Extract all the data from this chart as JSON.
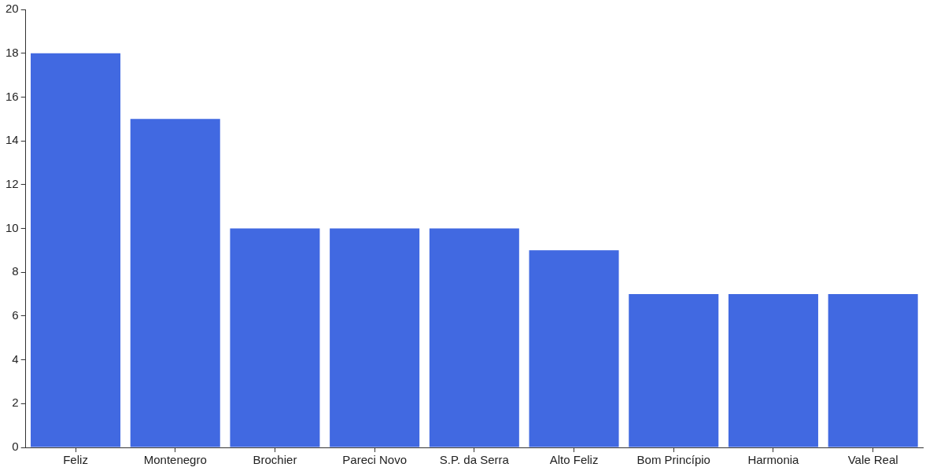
{
  "chart_data": {
    "type": "bar",
    "categories": [
      "Feliz",
      "Montenegro",
      "Brochier",
      "Pareci Novo",
      "S.P. da Serra",
      "Alto Feliz",
      "Bom Princípio",
      "Harmonia",
      "Vale Real"
    ],
    "values": [
      18,
      15,
      10,
      10,
      10,
      9,
      7,
      7,
      7
    ],
    "color": "#4169e1",
    "ylim": [
      0,
      20
    ],
    "yticks": [
      0,
      2,
      4,
      6,
      8,
      10,
      12,
      14,
      16,
      18,
      20
    ],
    "grid": false,
    "legend": false
  }
}
